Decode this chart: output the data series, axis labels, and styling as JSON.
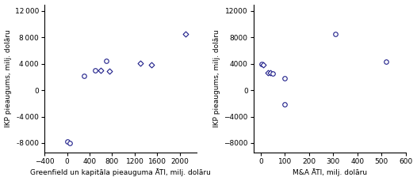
{
  "left_x": [
    0,
    50,
    300,
    500,
    600,
    700,
    750,
    1300,
    1500,
    2100
  ],
  "left_y": [
    -7800,
    -8000,
    2200,
    3000,
    3000,
    4500,
    2900,
    4100,
    3900,
    8500
  ],
  "left_markers": [
    "o",
    "o",
    "o",
    "o",
    "D",
    "o",
    "D",
    "D",
    "D",
    "D"
  ],
  "right_x": [
    5,
    10,
    30,
    40,
    50,
    100,
    100,
    310,
    520
  ],
  "right_y": [
    4000,
    3800,
    2700,
    2600,
    2500,
    1800,
    -2200,
    8500,
    4300
  ],
  "right_markers": [
    "o",
    "D",
    "D",
    "D",
    "o",
    "o",
    "o",
    "o",
    "o"
  ],
  "left_xlabel": "Greenfield un kapitāla pieauguma ĀTI, milj. dolāru",
  "right_xlabel": "M&A ĀTI, milj. dolāru",
  "ylabel": "IKP pieaugums, milj. dolāru",
  "xlim_left": [
    -400,
    2300
  ],
  "xlim_right": [
    -30,
    600
  ],
  "ylim": [
    -9500,
    13000
  ],
  "xticks_left": [
    -400,
    0,
    400,
    800,
    1200,
    1600,
    2000
  ],
  "xticks_right": [
    0,
    100,
    200,
    300,
    400,
    500,
    600
  ],
  "yticks": [
    -8000,
    -4000,
    0,
    4000,
    8000,
    12000
  ],
  "marker_color": "#1f1f8a",
  "marker_size": 4,
  "bg_color": "#ffffff",
  "font_size": 6.5
}
